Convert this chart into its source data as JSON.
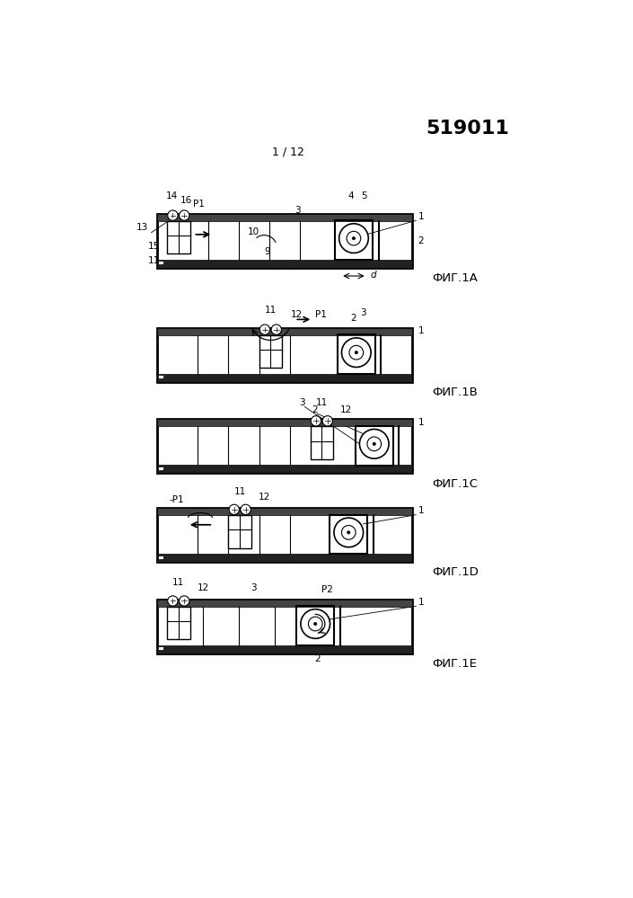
{
  "title_number": "519011",
  "page_label": "1 / 12",
  "fig_labels": [
    "ФИГ.1А",
    "ФИГ.1В",
    "ФИГ.1С",
    "ФИГ.1D",
    "ФИГ.1Е"
  ],
  "background_color": "#ffffff",
  "line_color": "#000000"
}
